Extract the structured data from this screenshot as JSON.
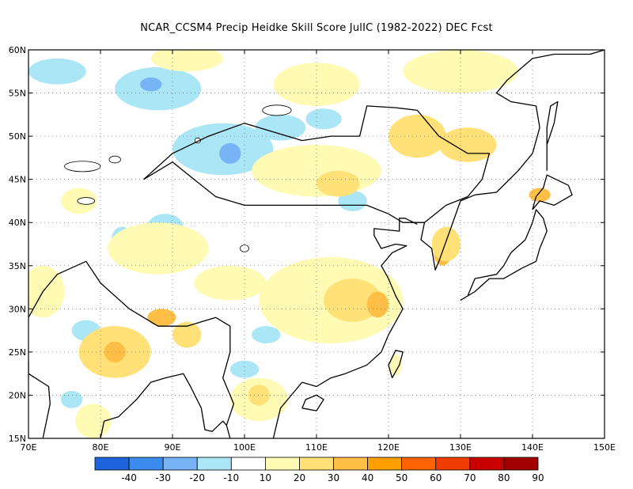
{
  "title": "NCAR_CCSM4 Precip Heidke Skill Score JulIC (1982-2022) DEC Fcst",
  "map": {
    "lon_range": [
      70,
      150
    ],
    "lat_range": [
      15,
      60
    ],
    "lon_ticks": [
      {
        "value": 70,
        "label": "70E"
      },
      {
        "value": 80,
        "label": "80E"
      },
      {
        "value": 90,
        "label": "90E"
      },
      {
        "value": 100,
        "label": "100E"
      },
      {
        "value": 110,
        "label": "110E"
      },
      {
        "value": 120,
        "label": "120E"
      },
      {
        "value": 130,
        "label": "130E"
      },
      {
        "value": 140,
        "label": "140E"
      },
      {
        "value": 150,
        "label": "150E"
      }
    ],
    "lat_ticks": [
      {
        "value": 15,
        "label": "15N"
      },
      {
        "value": 20,
        "label": "20N"
      },
      {
        "value": 25,
        "label": "25N"
      },
      {
        "value": 30,
        "label": "30N"
      },
      {
        "value": 35,
        "label": "35N"
      },
      {
        "value": 40,
        "label": "40N"
      },
      {
        "value": 45,
        "label": "45N"
      },
      {
        "value": 50,
        "label": "50N"
      },
      {
        "value": 55,
        "label": "55N"
      },
      {
        "value": 60,
        "label": "60N"
      }
    ],
    "grid": true
  },
  "colorbar": {
    "bins": [
      {
        "color": "#1e64dc"
      },
      {
        "color": "#3c8cf0"
      },
      {
        "color": "#78b4f5"
      },
      {
        "color": "#aae6f5"
      },
      {
        "color": "#ffffff"
      },
      {
        "color": "#fffab4"
      },
      {
        "color": "#ffe178"
      },
      {
        "color": "#ffbe46"
      },
      {
        "color": "#ffa000"
      },
      {
        "color": "#ff6400"
      },
      {
        "color": "#f03c00"
      },
      {
        "color": "#c80000"
      },
      {
        "color": "#a00000"
      }
    ],
    "labels": [
      "-40",
      "-30",
      "-20",
      "-10",
      "10",
      "20",
      "30",
      "40",
      "50",
      "60",
      "70",
      "80",
      "90"
    ]
  },
  "fill_colors": {
    "light_blue": "#aae6f5",
    "mid_blue": "#78b4f5",
    "pale_yellow": "#fffab4",
    "yellow": "#ffe178",
    "orange": "#ffbe46"
  },
  "regions": [
    {
      "lon": 74,
      "lat": 57.5,
      "rx": 4,
      "ry": 1.5,
      "level": "light_blue"
    },
    {
      "lon": 88,
      "lat": 55.5,
      "rx": 6,
      "ry": 2.5,
      "level": "light_blue"
    },
    {
      "lon": 87,
      "lat": 56,
      "rx": 1.5,
      "ry": 0.8,
      "level": "mid_blue"
    },
    {
      "lon": 97,
      "lat": 48.5,
      "rx": 7,
      "ry": 3,
      "level": "light_blue"
    },
    {
      "lon": 98,
      "lat": 48,
      "rx": 1.5,
      "ry": 1.2,
      "level": "mid_blue"
    },
    {
      "lon": 105,
      "lat": 51,
      "rx": 3.5,
      "ry": 1.5,
      "level": "light_blue"
    },
    {
      "lon": 111,
      "lat": 52,
      "rx": 2.5,
      "ry": 1.2,
      "level": "light_blue"
    },
    {
      "lon": 89,
      "lat": 39.5,
      "rx": 2.5,
      "ry": 1.5,
      "level": "light_blue"
    },
    {
      "lon": 83,
      "lat": 38,
      "rx": 1.5,
      "ry": 1.5,
      "level": "light_blue"
    },
    {
      "lon": 115,
      "lat": 42.5,
      "rx": 2,
      "ry": 1.2,
      "level": "light_blue"
    },
    {
      "lon": 103,
      "lat": 27,
      "rx": 2,
      "ry": 1,
      "level": "light_blue"
    },
    {
      "lon": 100,
      "lat": 23,
      "rx": 2,
      "ry": 1,
      "level": "light_blue"
    },
    {
      "lon": 78,
      "lat": 27.5,
      "rx": 2,
      "ry": 1.2,
      "level": "light_blue"
    },
    {
      "lon": 76,
      "lat": 19.5,
      "rx": 1.5,
      "ry": 1,
      "level": "light_blue"
    },
    {
      "lon": 92,
      "lat": 59,
      "rx": 5,
      "ry": 1.5,
      "level": "pale_yellow"
    },
    {
      "lon": 110,
      "lat": 56,
      "rx": 6,
      "ry": 2.5,
      "level": "pale_yellow"
    },
    {
      "lon": 130,
      "lat": 57.5,
      "rx": 8,
      "ry": 2.5,
      "level": "pale_yellow"
    },
    {
      "lon": 124,
      "lat": 50,
      "rx": 4,
      "ry": 2.5,
      "level": "yellow"
    },
    {
      "lon": 131,
      "lat": 49,
      "rx": 4,
      "ry": 2,
      "level": "yellow"
    },
    {
      "lon": 110,
      "lat": 46,
      "rx": 9,
      "ry": 3,
      "level": "pale_yellow"
    },
    {
      "lon": 113,
      "lat": 44.5,
      "rx": 3,
      "ry": 1.5,
      "level": "yellow"
    },
    {
      "lon": 88,
      "lat": 37,
      "rx": 7,
      "ry": 3,
      "level": "pale_yellow"
    },
    {
      "lon": 112,
      "lat": 31,
      "rx": 10,
      "ry": 5,
      "level": "pale_yellow"
    },
    {
      "lon": 115,
      "lat": 31,
      "rx": 4,
      "ry": 2.5,
      "level": "yellow"
    },
    {
      "lon": 118.5,
      "lat": 30.5,
      "rx": 1.5,
      "ry": 1.5,
      "level": "orange"
    },
    {
      "lon": 82,
      "lat": 25,
      "rx": 5,
      "ry": 3,
      "level": "yellow"
    },
    {
      "lon": 82,
      "lat": 25,
      "rx": 1.5,
      "ry": 1.2,
      "level": "orange"
    },
    {
      "lon": 88.5,
      "lat": 29,
      "rx": 2,
      "ry": 1,
      "level": "orange"
    },
    {
      "lon": 92,
      "lat": 27,
      "rx": 2,
      "ry": 1.5,
      "level": "yellow"
    },
    {
      "lon": 72,
      "lat": 32,
      "rx": 3,
      "ry": 3,
      "level": "pale_yellow"
    },
    {
      "lon": 102,
      "lat": 19.5,
      "rx": 4,
      "ry": 2.5,
      "level": "pale_yellow"
    },
    {
      "lon": 102,
      "lat": 20,
      "rx": 1.5,
      "ry": 1.2,
      "level": "yellow"
    },
    {
      "lon": 127.5,
      "lat": 36.5,
      "rx": 1.2,
      "ry": 1.5,
      "level": "orange"
    },
    {
      "lon": 128,
      "lat": 37.5,
      "rx": 2,
      "ry": 2,
      "level": "yellow"
    },
    {
      "lon": 141,
      "lat": 43.2,
      "rx": 1.5,
      "ry": 0.8,
      "level": "orange"
    },
    {
      "lon": 79,
      "lat": 17,
      "rx": 2.5,
      "ry": 2,
      "level": "pale_yellow"
    },
    {
      "lon": 121,
      "lat": 23.5,
      "rx": 0.8,
      "ry": 1.2,
      "level": "pale_yellow"
    },
    {
      "lon": 98,
      "lat": 33,
      "rx": 5,
      "ry": 2,
      "level": "pale_yellow"
    },
    {
      "lon": 77,
      "lat": 42.5,
      "rx": 2.5,
      "ry": 1.5,
      "level": "pale_yellow"
    }
  ],
  "coastlines": [
    [
      [
        70,
        29
      ],
      [
        72,
        32
      ],
      [
        74,
        34
      ],
      [
        78,
        35.5
      ],
      [
        80,
        33
      ],
      [
        84,
        30
      ],
      [
        88,
        28
      ],
      [
        92,
        28
      ],
      [
        96,
        29
      ],
      [
        98,
        28
      ],
      [
        98,
        25
      ],
      [
        97,
        22
      ],
      [
        98.5,
        19
      ],
      [
        97.5,
        16.5
      ],
      [
        98,
        15
      ]
    ],
    [
      [
        86,
        45
      ],
      [
        90,
        48
      ],
      [
        95,
        50
      ],
      [
        100,
        51.5
      ],
      [
        104,
        50.5
      ],
      [
        108,
        49.5
      ],
      [
        112,
        50
      ],
      [
        116,
        50
      ],
      [
        117,
        53.5
      ],
      [
        121,
        53.3
      ],
      [
        124,
        53
      ],
      [
        127,
        50
      ],
      [
        131,
        48
      ],
      [
        134,
        48
      ],
      [
        133,
        45
      ],
      [
        131,
        43
      ],
      [
        128,
        42
      ],
      [
        125,
        40
      ],
      [
        122,
        40
      ],
      [
        120,
        41
      ],
      [
        117,
        42
      ],
      [
        112,
        42
      ],
      [
        107,
        42
      ],
      [
        100,
        42
      ],
      [
        96,
        43
      ],
      [
        93,
        45
      ],
      [
        90,
        47
      ],
      [
        86,
        45
      ]
    ],
    [
      [
        130,
        42.5
      ],
      [
        128.5,
        39
      ],
      [
        127,
        35.5
      ],
      [
        126.5,
        34.5
      ],
      [
        126,
        37
      ],
      [
        124.5,
        38
      ],
      [
        125,
        40
      ]
    ],
    [
      [
        108,
        21.5
      ],
      [
        110,
        21
      ],
      [
        112,
        22
      ],
      [
        114,
        22.5
      ],
      [
        117,
        23.5
      ],
      [
        119,
        25
      ],
      [
        120,
        27
      ],
      [
        122,
        30
      ],
      [
        121,
        31.5
      ],
      [
        120,
        33.5
      ],
      [
        119,
        35
      ],
      [
        120.5,
        36.5
      ],
      [
        122.5,
        37.3
      ],
      [
        121,
        37.5
      ],
      [
        119,
        37
      ],
      [
        118,
        38.5
      ],
      [
        118,
        39.3
      ],
      [
        121.5,
        39
      ],
      [
        121.5,
        40.5
      ],
      [
        122.3,
        40.5
      ],
      [
        124,
        39.8
      ]
    ],
    [
      [
        130,
        42.5
      ],
      [
        132,
        43.2
      ],
      [
        135,
        43.5
      ],
      [
        138,
        46
      ],
      [
        140,
        48
      ],
      [
        141,
        51
      ],
      [
        140.5,
        53.5
      ],
      [
        137,
        54
      ],
      [
        135,
        55
      ],
      [
        136.5,
        56.5
      ],
      [
        140,
        59
      ],
      [
        143,
        59.5
      ],
      [
        148,
        59.5
      ],
      [
        150,
        60
      ]
    ],
    [
      [
        120.5,
        22
      ],
      [
        121.5,
        23.5
      ],
      [
        122,
        25
      ],
      [
        121,
        25.2
      ],
      [
        120,
        23.5
      ],
      [
        120.5,
        22
      ]
    ],
    [
      [
        130,
        31
      ],
      [
        131,
        31.5
      ],
      [
        132,
        33.5
      ],
      [
        135,
        34
      ],
      [
        136,
        35
      ],
      [
        137,
        36.5
      ],
      [
        139,
        38
      ],
      [
        140,
        40
      ],
      [
        140.5,
        41.5
      ],
      [
        141.5,
        40.5
      ],
      [
        142,
        39
      ],
      [
        141,
        37
      ],
      [
        140.5,
        35.5
      ],
      [
        138.5,
        34.7
      ],
      [
        136,
        33.5
      ],
      [
        134,
        33.5
      ],
      [
        132,
        32
      ],
      [
        130,
        31
      ]
    ],
    [
      [
        140,
        41.5
      ],
      [
        141,
        42.5
      ],
      [
        143,
        42
      ],
      [
        145.5,
        43.2
      ],
      [
        145,
        44.3
      ],
      [
        142,
        45.5
      ],
      [
        141.5,
        44
      ],
      [
        140.5,
        43
      ],
      [
        140,
        41.5
      ]
    ],
    [
      [
        142,
        46
      ],
      [
        142,
        49
      ],
      [
        143,
        51.5
      ],
      [
        143.5,
        54
      ],
      [
        142.5,
        53.5
      ],
      [
        142,
        51
      ],
      [
        142,
        46
      ]
    ],
    [
      [
        108,
        18.5
      ],
      [
        110,
        18.2
      ],
      [
        111,
        19.5
      ],
      [
        110,
        20
      ],
      [
        108.5,
        19.5
      ],
      [
        108,
        18.5
      ]
    ],
    [
      [
        72,
        15
      ],
      [
        73,
        19
      ],
      [
        72.8,
        21
      ],
      [
        70,
        22.5
      ],
      [
        70,
        24
      ]
    ],
    [
      [
        80,
        15
      ],
      [
        80.5,
        17
      ],
      [
        82.5,
        17.5
      ],
      [
        85,
        19.5
      ],
      [
        87,
        21.5
      ],
      [
        89,
        22
      ],
      [
        91.5,
        22.5
      ],
      [
        92.5,
        21
      ],
      [
        94,
        18.5
      ],
      [
        94.5,
        16
      ],
      [
        95.5,
        15.8
      ],
      [
        97,
        17
      ],
      [
        97.5,
        16.5
      ]
    ],
    [
      [
        104,
        15
      ],
      [
        105,
        18.5
      ],
      [
        107,
        20.5
      ],
      [
        108,
        21.5
      ]
    ],
    [
      [
        100,
        15
      ],
      [
        100.5,
        13.5
      ],
      [
        102,
        13
      ]
    ]
  ],
  "water_bodies": [
    {
      "lon": 77.5,
      "lat": 46.5,
      "rx": 2.5,
      "ry": 0.6
    },
    {
      "lon": 104.5,
      "lat": 53,
      "rx": 2,
      "ry": 0.6
    },
    {
      "lon": 78,
      "lat": 42.5,
      "rx": 1.2,
      "ry": 0.4
    },
    {
      "lon": 82,
      "lat": 47.3,
      "rx": 0.8,
      "ry": 0.4
    },
    {
      "lon": 100,
      "lat": 37,
      "rx": 0.6,
      "ry": 0.4
    },
    {
      "lon": 93.5,
      "lat": 49.5,
      "rx": 0.4,
      "ry": 0.3
    }
  ]
}
